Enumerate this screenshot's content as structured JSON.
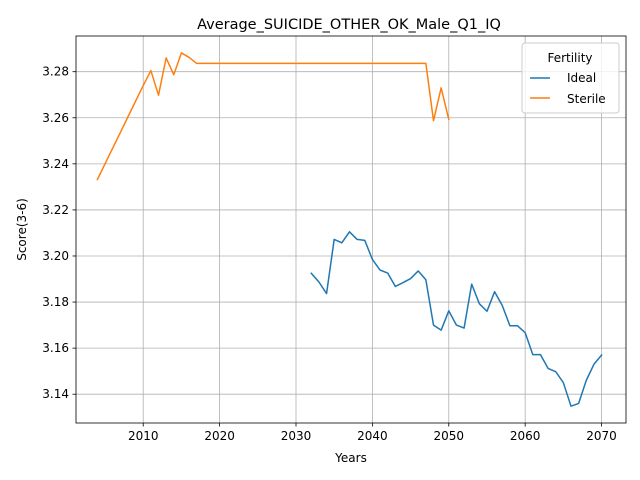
{
  "chart_data": {
    "type": "line",
    "title": "Average_SUICIDE_OTHER_OK_Male_Q1_IQ",
    "xlabel": "Years",
    "ylabel": "Score(3-6)",
    "xlim": [
      2001.2,
      2073.2
    ],
    "ylim": [
      3.1275,
      3.2955
    ],
    "x_ticks": [
      2010,
      2020,
      2030,
      2040,
      2050,
      2060,
      2070
    ],
    "y_ticks": [
      3.14,
      3.16,
      3.18,
      3.2,
      3.22,
      3.24,
      3.26,
      3.28
    ],
    "x_tick_labels": [
      "2010",
      "2020",
      "2030",
      "2040",
      "2050",
      "2060",
      "2070"
    ],
    "y_tick_labels": [
      "3.14",
      "3.16",
      "3.18",
      "3.20",
      "3.22",
      "3.24",
      "3.26",
      "3.28"
    ],
    "grid": true,
    "legend": {
      "title": "Fertility",
      "placement": "top-right"
    },
    "series": [
      {
        "name": "Ideal",
        "color": "#1f77b4",
        "x": [
          2032,
          2033,
          2034,
          2035,
          2036,
          2037,
          2038,
          2039,
          2040,
          2041,
          2042,
          2043,
          2044,
          2045,
          2046,
          2047,
          2048,
          2049,
          2050,
          2051,
          2052,
          2053,
          2054,
          2055,
          2056,
          2057,
          2058,
          2059,
          2060,
          2061,
          2062,
          2063,
          2064,
          2065,
          2066,
          2067,
          2068,
          2069,
          2070
        ],
        "y": [
          3.1925,
          3.1887,
          3.1837,
          3.2072,
          3.2057,
          3.2105,
          3.2072,
          3.2068,
          3.1985,
          3.1939,
          3.1926,
          3.1868,
          3.1884,
          3.1902,
          3.1935,
          3.1897,
          3.17,
          3.1678,
          3.1762,
          3.17,
          3.1687,
          3.1878,
          3.1793,
          3.176,
          3.1845,
          3.1785,
          3.1697,
          3.1697,
          3.1667,
          3.1572,
          3.1572,
          3.1512,
          3.1498,
          3.145,
          3.1348,
          3.136,
          3.146,
          3.153,
          3.157
        ]
      },
      {
        "name": "Sterile",
        "color": "#ff7f0e",
        "x": [
          2004,
          2005,
          2006,
          2007,
          2008,
          2009,
          2010,
          2011,
          2012,
          2013,
          2014,
          2015,
          2016,
          2017,
          2018,
          2019,
          2020,
          2021,
          2022,
          2023,
          2024,
          2025,
          2026,
          2027,
          2028,
          2029,
          2030,
          2031,
          2032,
          2033,
          2034,
          2035,
          2036,
          2037,
          2038,
          2039,
          2040,
          2041,
          2042,
          2043,
          2044,
          2045,
          2046,
          2047,
          2048,
          2049,
          2050
        ],
        "y": [
          3.2332,
          3.24,
          3.2468,
          3.2536,
          3.2604,
          3.2672,
          3.274,
          3.2805,
          3.2698,
          3.286,
          3.2787,
          3.2882,
          3.2862,
          3.2836,
          3.2836,
          3.2836,
          3.2836,
          3.2836,
          3.2836,
          3.2836,
          3.2836,
          3.2836,
          3.2836,
          3.2836,
          3.2836,
          3.2836,
          3.2836,
          3.2836,
          3.2836,
          3.2836,
          3.2836,
          3.2836,
          3.2836,
          3.2836,
          3.2836,
          3.2836,
          3.2836,
          3.2836,
          3.2836,
          3.2836,
          3.2836,
          3.2836,
          3.2836,
          3.2836,
          3.2587,
          3.273,
          3.2593
        ]
      }
    ]
  }
}
